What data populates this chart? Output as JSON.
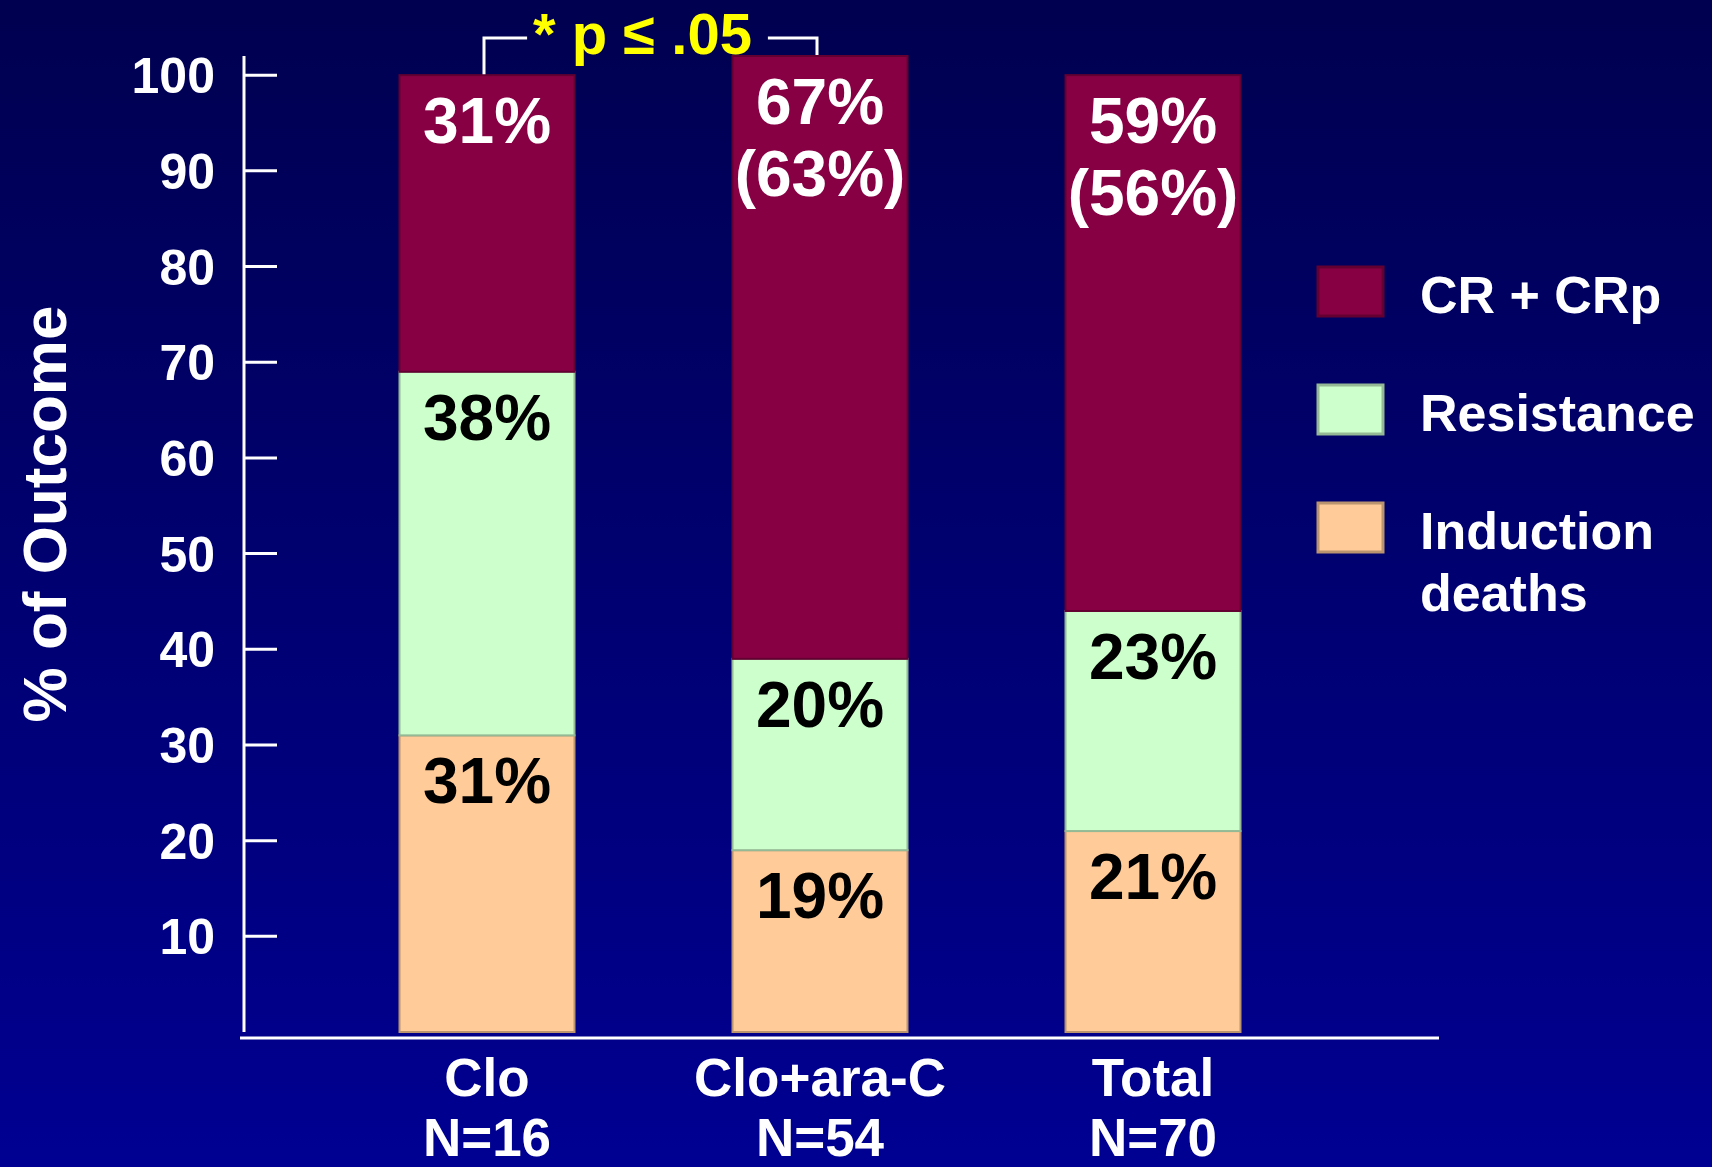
{
  "chart_data": {
    "type": "bar",
    "stacked": true,
    "categories": [
      "Clo\nN=16",
      "Clo+ara-C\nN=54",
      "Total\nN=70"
    ],
    "series": [
      {
        "name": "Induction deaths",
        "color": "#ffcc99",
        "values": [
          31,
          19,
          21
        ],
        "value_labels": [
          "31%",
          "19%",
          "21%"
        ]
      },
      {
        "name": "Resistance",
        "color": "#ccffcc",
        "values": [
          38,
          20,
          23
        ],
        "value_labels": [
          "38%",
          "20%",
          "23%"
        ]
      },
      {
        "name": "CR + CRp",
        "color": "#880044",
        "values": [
          31,
          63,
          56
        ],
        "value_labels": [
          "31%",
          "67%\n(63%)",
          "59%\n(56%)"
        ]
      }
    ],
    "ylabel": "% of Outcome",
    "ylim": [
      0,
      102
    ],
    "yticks": [
      10,
      20,
      30,
      40,
      50,
      60,
      70,
      80,
      90,
      100
    ],
    "annotations": [
      "* p ≤ .05"
    ],
    "legend": "right"
  }
}
